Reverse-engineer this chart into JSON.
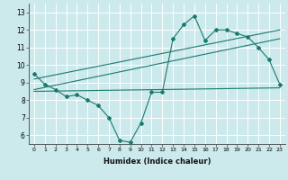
{
  "bg_color": "#cce9ec",
  "grid_color": "#ffffff",
  "line_color": "#1a7a6e",
  "xlabel": "Humidex (Indice chaleur)",
  "xlim": [
    -0.5,
    23.5
  ],
  "ylim": [
    5.5,
    13.5
  ],
  "xticks": [
    0,
    1,
    2,
    3,
    4,
    5,
    6,
    7,
    8,
    9,
    10,
    11,
    12,
    13,
    14,
    15,
    16,
    17,
    18,
    19,
    20,
    21,
    22,
    23
  ],
  "yticks": [
    6,
    7,
    8,
    9,
    10,
    11,
    12,
    13
  ],
  "series1_x": [
    0,
    1,
    2,
    3,
    4,
    5,
    6,
    7,
    8,
    9,
    10,
    11,
    12,
    13,
    14,
    15,
    16,
    17,
    18,
    19,
    20,
    21,
    22,
    23
  ],
  "series1_y": [
    9.5,
    8.9,
    8.6,
    8.2,
    8.3,
    8.0,
    7.7,
    7.0,
    5.7,
    5.6,
    6.7,
    8.45,
    8.45,
    11.5,
    12.3,
    12.8,
    11.4,
    12.0,
    12.0,
    11.8,
    11.6,
    11.0,
    10.3,
    8.9
  ],
  "trend1_x": [
    0,
    23
  ],
  "trend1_y": [
    9.2,
    12.0
  ],
  "trend2_x": [
    0,
    23
  ],
  "trend2_y": [
    8.6,
    11.5
  ],
  "trend3_x": [
    0,
    23
  ],
  "trend3_y": [
    8.5,
    8.7
  ]
}
